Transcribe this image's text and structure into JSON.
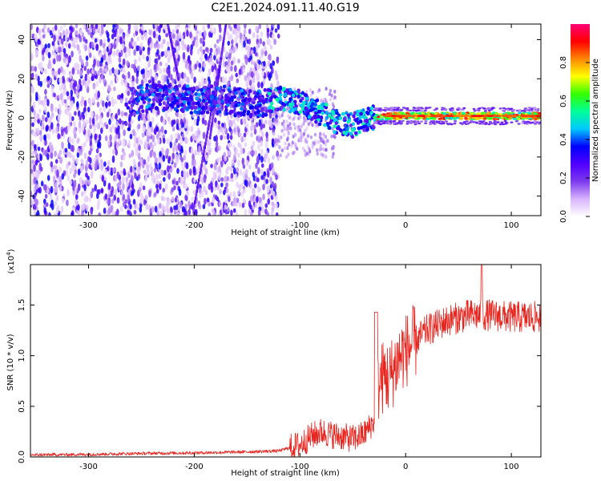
{
  "title": "C2E1.2024.091.11.40.G19",
  "chart_data": [
    {
      "type": "heatmap",
      "xlabel": "Height of straight line (km)",
      "ylabel": "Frequency (Hz)",
      "xlim": [
        -355,
        128
      ],
      "ylim": [
        -50,
        48
      ],
      "xticks": [
        -300,
        -200,
        -100,
        0,
        100
      ],
      "yticks": [
        -40,
        -20,
        0,
        20,
        40
      ],
      "colorbar": {
        "label": "Normalized spectral amplitude",
        "range": [
          0,
          1
        ],
        "ticks": [
          "0.0",
          "0.2",
          "0.4",
          "0.6",
          "0.8"
        ],
        "tick_values": [
          0,
          0.2,
          0.4,
          0.6,
          0.8
        ],
        "colormap": [
          "#ffffff",
          "#d8b4fe",
          "#7c3aed",
          "#4f00ff",
          "#0000ff",
          "#00c8ff",
          "#00ff99",
          "#33ff00",
          "#ffff00",
          "#ff8800",
          "#ff0000",
          "#ff0077"
        ]
      },
      "main_track": [
        {
          "x": -260,
          "y": 8
        },
        {
          "x": -240,
          "y": 12
        },
        {
          "x": -220,
          "y": 10
        },
        {
          "x": -200,
          "y": 9
        },
        {
          "x": -180,
          "y": 10
        },
        {
          "x": -160,
          "y": 8
        },
        {
          "x": -140,
          "y": 7
        },
        {
          "x": -120,
          "y": 10
        },
        {
          "x": -100,
          "y": 8
        },
        {
          "x": -80,
          "y": 2
        },
        {
          "x": -60,
          "y": -3
        },
        {
          "x": -50,
          "y": -4
        },
        {
          "x": -40,
          "y": -1
        },
        {
          "x": -30,
          "y": 0
        },
        {
          "x": -10,
          "y": 1
        },
        {
          "x": 0,
          "y": 1
        },
        {
          "x": 50,
          "y": 1
        },
        {
          "x": 100,
          "y": 1
        },
        {
          "x": 128,
          "y": 1
        }
      ]
    },
    {
      "type": "line",
      "xlabel": "Height of straight line (km)",
      "ylabel": "SNR (10 * v/v)",
      "scale_label": "(x10",
      "scale_exp": "4",
      "scale_close": ")",
      "xlim": [
        -355,
        128
      ],
      "ylim": [
        0,
        1.9
      ],
      "xticks": [
        -300,
        -200,
        -100,
        0,
        100
      ],
      "yticks": [
        0.0,
        0.5,
        1.0,
        1.5
      ],
      "ytick_labels": [
        "0.0",
        "0.5",
        "1.0",
        "1.5"
      ],
      "series": [
        {
          "color": "#e8241e",
          "envelope": [
            {
              "x": -355,
              "y": 0.02
            },
            {
              "x": -300,
              "y": 0.025
            },
            {
              "x": -250,
              "y": 0.035
            },
            {
              "x": -200,
              "y": 0.04
            },
            {
              "x": -150,
              "y": 0.05
            },
            {
              "x": -120,
              "y": 0.06
            },
            {
              "x": -100,
              "y": 0.12
            },
            {
              "x": -90,
              "y": 0.2
            },
            {
              "x": -80,
              "y": 0.25
            },
            {
              "x": -70,
              "y": 0.22
            },
            {
              "x": -60,
              "y": 0.2
            },
            {
              "x": -50,
              "y": 0.18
            },
            {
              "x": -40,
              "y": 0.22
            },
            {
              "x": -30,
              "y": 0.35
            },
            {
              "x": -25,
              "y": 0.75
            },
            {
              "x": -20,
              "y": 0.8
            },
            {
              "x": -15,
              "y": 0.78
            },
            {
              "x": -10,
              "y": 0.9
            },
            {
              "x": -5,
              "y": 1.0
            },
            {
              "x": 0,
              "y": 1.05
            },
            {
              "x": 10,
              "y": 1.15
            },
            {
              "x": 20,
              "y": 1.25
            },
            {
              "x": 30,
              "y": 1.3
            },
            {
              "x": 40,
              "y": 1.35
            },
            {
              "x": 60,
              "y": 1.4
            },
            {
              "x": 80,
              "y": 1.4
            },
            {
              "x": 100,
              "y": 1.38
            },
            {
              "x": 128,
              "y": 1.38
            }
          ]
        }
      ]
    }
  ]
}
